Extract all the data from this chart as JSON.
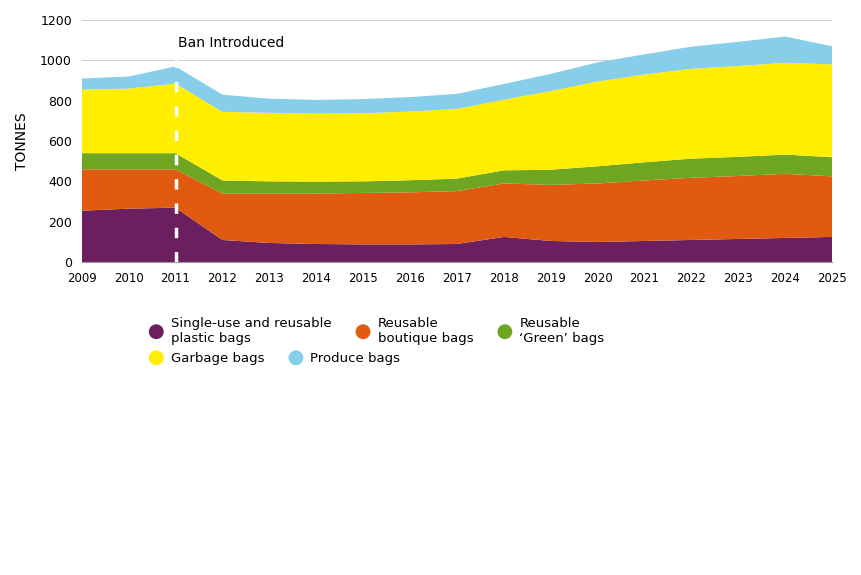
{
  "years": [
    2009,
    2010,
    2011,
    2012,
    2013,
    2014,
    2015,
    2016,
    2017,
    2018,
    2019,
    2020,
    2021,
    2022,
    2023,
    2024,
    2025
  ],
  "single_use": [
    255,
    265,
    270,
    110,
    95,
    90,
    88,
    88,
    90,
    125,
    105,
    100,
    105,
    110,
    115,
    120,
    125
  ],
  "boutique": [
    205,
    195,
    190,
    230,
    245,
    250,
    255,
    258,
    262,
    265,
    278,
    290,
    300,
    308,
    312,
    318,
    300
  ],
  "green": [
    80,
    80,
    80,
    65,
    60,
    58,
    57,
    60,
    62,
    65,
    75,
    85,
    90,
    95,
    95,
    95,
    95
  ],
  "garbage": [
    315,
    320,
    345,
    340,
    340,
    338,
    338,
    340,
    345,
    350,
    390,
    420,
    435,
    445,
    450,
    455,
    460
  ],
  "produce": [
    55,
    60,
    85,
    85,
    70,
    68,
    70,
    72,
    75,
    78,
    85,
    95,
    100,
    110,
    120,
    130,
    90
  ],
  "colors": {
    "single_use": "#6B1F5E",
    "boutique": "#E05A10",
    "green": "#6EA621",
    "garbage": "#FFEE00",
    "produce": "#87CEEB"
  },
  "labels": {
    "single_use": "Single-use and reusable\nplastic bags",
    "boutique": "Reusable\nboutique bags",
    "green": "Reusable\n‘Green’ bags",
    "garbage": "Garbage bags",
    "produce": "Produce bags"
  },
  "ylabel": "TONNES",
  "ylim": [
    0,
    1200
  ],
  "yticks": [
    0,
    200,
    400,
    600,
    800,
    1000,
    1200
  ],
  "ban_year": 2011,
  "ban_label": "Ban Introduced",
  "background_color": "#FFFFFF",
  "grid_color": "#CCCCCC",
  "ban_line_color": "white"
}
